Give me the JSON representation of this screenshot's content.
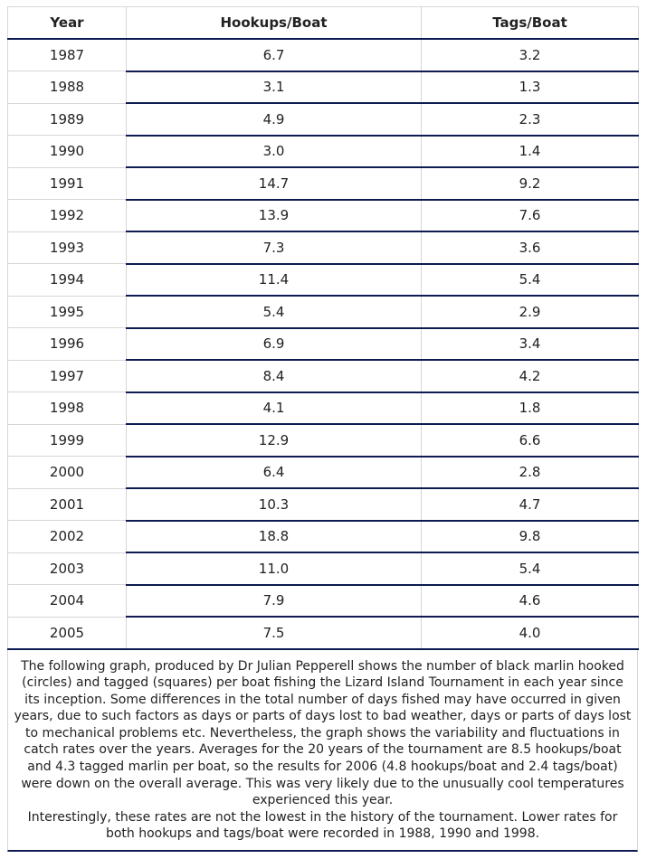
{
  "table": {
    "headers": [
      "Year",
      "Hookups/Boat",
      "Tags/Boat"
    ],
    "rows": [
      [
        "1987",
        "6.7",
        "3.2"
      ],
      [
        "1988",
        "3.1",
        "1.3"
      ],
      [
        "1989",
        "4.9",
        "2.3"
      ],
      [
        "1990",
        "3.0",
        "1.4"
      ],
      [
        "1991",
        "14.7",
        "9.2"
      ],
      [
        "1992",
        "13.9",
        "7.6"
      ],
      [
        "1993",
        "7.3",
        "3.6"
      ],
      [
        "1994",
        "11.4",
        "5.4"
      ],
      [
        "1995",
        "5.4",
        "2.9"
      ],
      [
        "1996",
        "6.9",
        "3.4"
      ],
      [
        "1997",
        "8.4",
        "4.2"
      ],
      [
        "1998",
        "4.1",
        "1.8"
      ],
      [
        "1999",
        "12.9",
        "6.6"
      ],
      [
        "2000",
        "6.4",
        "2.8"
      ],
      [
        "2001",
        "10.3",
        "4.7"
      ],
      [
        "2002",
        "18.8",
        "9.8"
      ],
      [
        "2003",
        "11.0",
        "5.4"
      ],
      [
        "2004",
        "7.9",
        "4.6"
      ],
      [
        "2005",
        "7.5",
        "4.0"
      ]
    ]
  },
  "note": {
    "paragraph1": "The following graph, produced by Dr Julian Pepperell shows the number of black marlin hooked (circles) and tagged (squares) per boat fishing the Lizard Island Tournament in each year since its inception. Some differences in the total number of days fished may have occurred in given years, due to such factors as days or parts of days lost to bad weather, days or parts of days lost to mechanical problems etc. Nevertheless, the graph shows the variability and fluctuations in catch rates over the years. Averages for the 20 years of the tournament are 8.5 hookups/boat and 4.3 tagged marlin per boat, so the results for 2006 (4.8 hookups/boat and 2.4 tags/boat) were down on the overall average. This was very likely due to the unusually cool temperatures experienced this year.",
    "paragraph2": "Interestingly, these rates are not the lowest in the history of the tournament. Lower rates for both hookups and tags/boat were recorded in 1988, 1990 and 1998."
  }
}
